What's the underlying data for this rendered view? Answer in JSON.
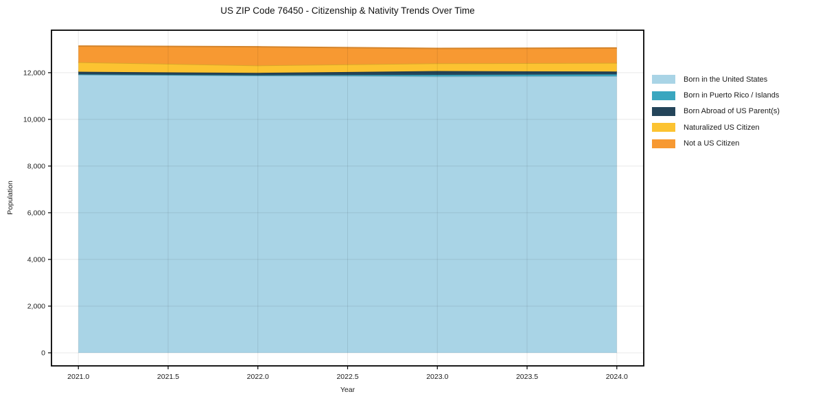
{
  "chart_data": {
    "type": "area",
    "stacked": true,
    "title": "US ZIP Code 76450 - Citizenship & Nativity Trends Over Time",
    "xlabel": "Year",
    "ylabel": "Population",
    "x": [
      2021,
      2022,
      2023,
      2024
    ],
    "series": [
      {
        "name": "Born in the United States",
        "color": "#a9d4e6",
        "values": [
          11920,
          11880,
          11840,
          11850
        ]
      },
      {
        "name": "Born in Puerto Rico / Islands",
        "color": "#3aa6bf",
        "values": [
          10,
          10,
          70,
          80
        ]
      },
      {
        "name": "Born Abroad of US Parent(s)",
        "color": "#24455a",
        "values": [
          110,
          100,
          160,
          120
        ]
      },
      {
        "name": "Naturalized US Citizen",
        "color": "#fcc331",
        "values": [
          410,
          320,
          330,
          370
        ]
      },
      {
        "name": "Not a US Citizen",
        "color": "#f79932",
        "values": [
          690,
          800,
          640,
          640
        ]
      }
    ],
    "totals": [
      13140,
      13110,
      13040,
      13060
    ],
    "xlim": [
      2020.85,
      2024.15
    ],
    "ylim": [
      -560,
      13820
    ],
    "xticks": [
      2021.0,
      2021.5,
      2022.0,
      2022.5,
      2023.0,
      2023.5,
      2024.0
    ],
    "xtick_labels": [
      "2021.0",
      "2021.5",
      "2022.0",
      "2022.5",
      "2023.0",
      "2023.5",
      "2024.0"
    ],
    "yticks": [
      0,
      2000,
      4000,
      6000,
      8000,
      10000,
      12000
    ],
    "ytick_labels": [
      "0",
      "2,000",
      "4,000",
      "6,000",
      "8,000",
      "10,000",
      "12,000"
    ],
    "grid": true,
    "legend_position": "right-outside",
    "frame_color": "#000000",
    "gridline_color": "rgba(0,0,0,0.09)"
  }
}
